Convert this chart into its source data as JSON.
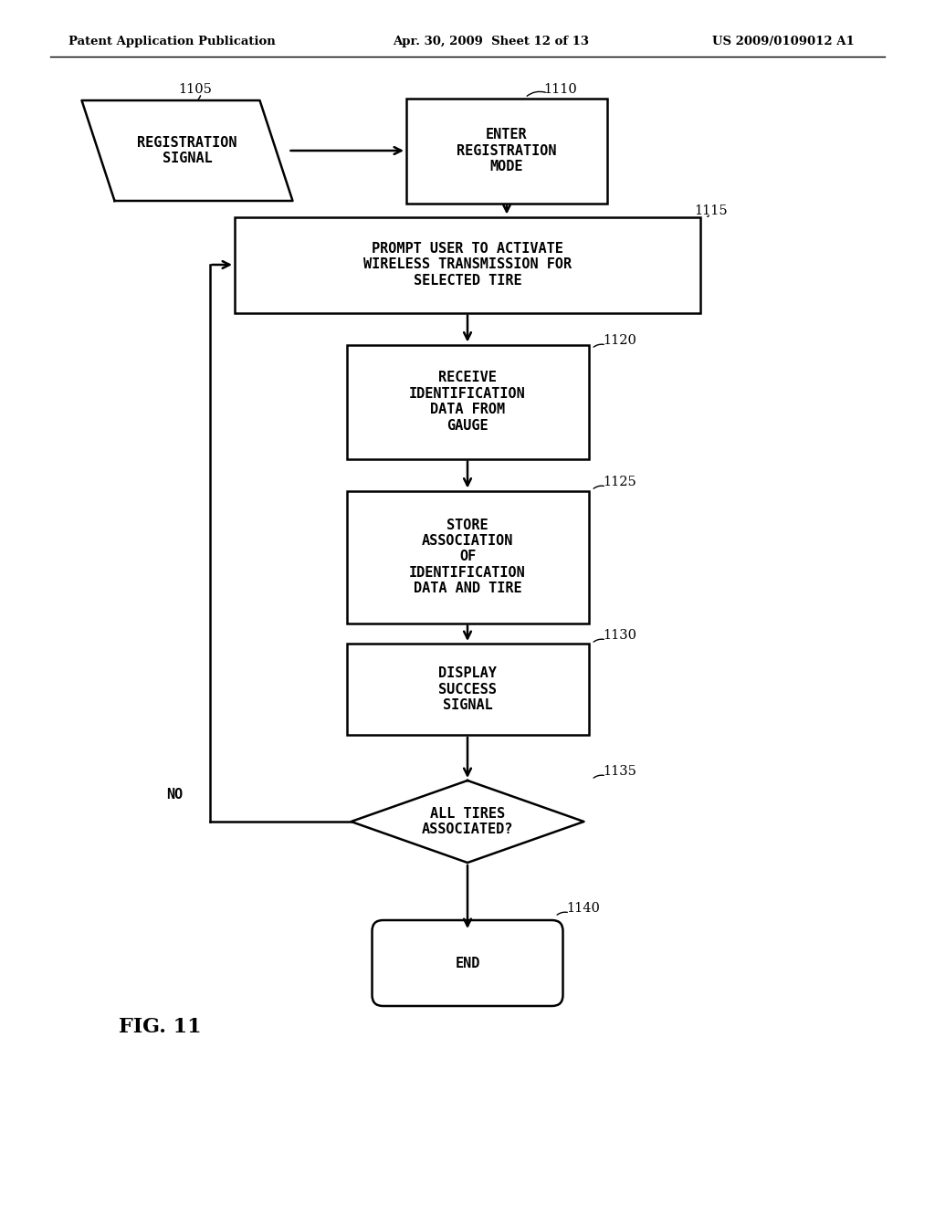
{
  "bg_color": "#ffffff",
  "header_left": "Patent Application Publication",
  "header_mid": "Apr. 30, 2009  Sheet 12 of 13",
  "header_right": "US 2009/0109012 A1",
  "fig_label": "FIG. 11"
}
